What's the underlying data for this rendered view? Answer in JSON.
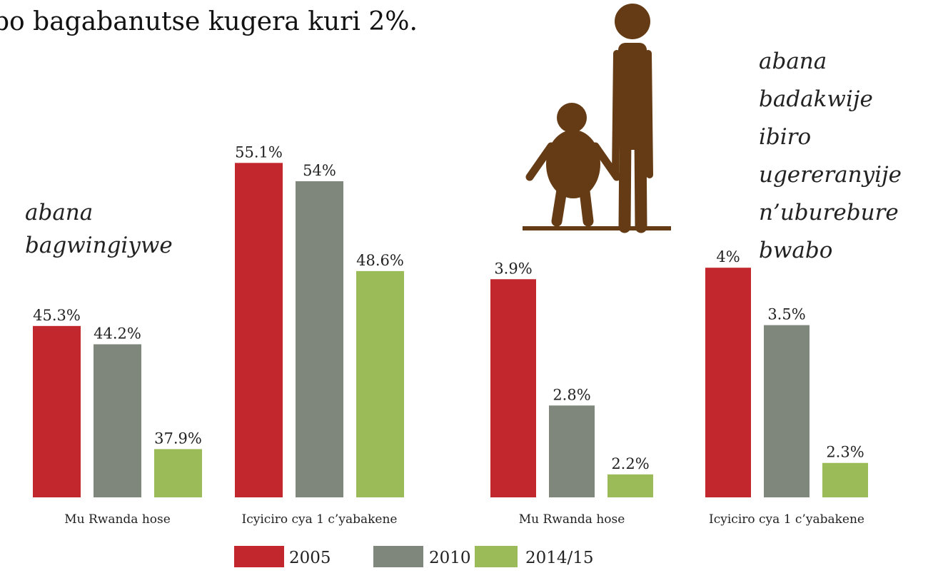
{
  "caption": "bo bagabanutse kugera kuri 2%.",
  "chart_data": [
    {
      "type": "bar",
      "annotation": [
        "abana",
        "bagwingiywe"
      ],
      "categories": [
        "Mu Rwanda hose",
        "Icyiciro cya 1 c’yabakene"
      ],
      "series": [
        {
          "name": "2005",
          "color": "#c1272d",
          "values": [
            45.3,
            55.1
          ],
          "value_labels": [
            "45.3%",
            "55.1%"
          ]
        },
        {
          "name": "2010",
          "color": "#7f877c",
          "values": [
            44.2,
            54
          ],
          "value_labels": [
            "44.2%",
            "54%"
          ]
        },
        {
          "name": "2014/15",
          "color": "#9bbb59",
          "values": [
            37.9,
            48.6
          ],
          "value_labels": [
            "37.9%",
            "48.6%"
          ]
        }
      ],
      "ylim": [
        35,
        57
      ]
    },
    {
      "type": "bar",
      "annotation": [
        "abana",
        "badakwije",
        "ibiro",
        "ugereranyije",
        "n’uburebure",
        "bwabo"
      ],
      "categories": [
        "Mu Rwanda hose",
        "Icyiciro cya 1 c’yabakene"
      ],
      "series": [
        {
          "name": "2005",
          "color": "#c1272d",
          "values": [
            3.9,
            4
          ],
          "value_labels": [
            "3.9%",
            "4%"
          ]
        },
        {
          "name": "2010",
          "color": "#7f877c",
          "values": [
            2.8,
            3.5
          ],
          "value_labels": [
            "2.8%",
            "3.5%"
          ]
        },
        {
          "name": "2014/15",
          "color": "#9bbb59",
          "values": [
            2.2,
            2.3
          ],
          "value_labels": [
            "2.2%",
            "2.3%"
          ]
        }
      ],
      "ylim": [
        2,
        4.2
      ]
    }
  ]
}
